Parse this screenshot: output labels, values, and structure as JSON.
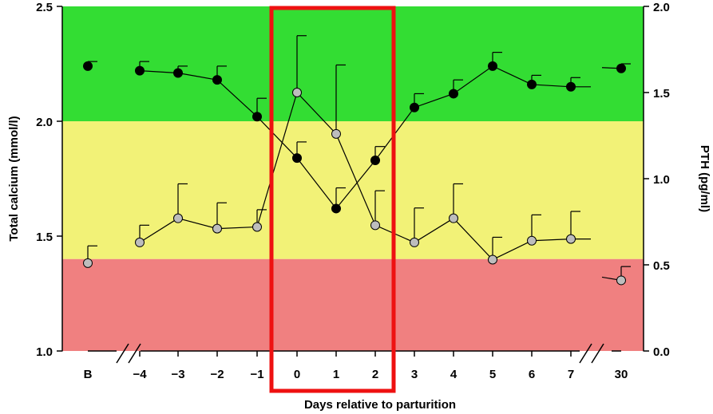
{
  "chart_data": {
    "type": "line",
    "xlabel": "Days relative to parturition",
    "ylabel_left": "Total calcium (mmol/l)",
    "ylabel_right": "PTH (pg/ml)",
    "categories": [
      "B",
      "−4",
      "−3",
      "−2",
      "−1",
      "0",
      "1",
      "2",
      "3",
      "4",
      "5",
      "6",
      "7",
      "30"
    ],
    "ylim_left": [
      1.0,
      2.5
    ],
    "ylim_right": [
      0.0,
      2.0
    ],
    "yticks_left": [
      "1.0",
      "1.5",
      "2.0",
      "2.5"
    ],
    "yticks_right": [
      "0.0",
      "0.5",
      "1.0",
      "1.5",
      "2.0"
    ],
    "bands": [
      {
        "name": "green",
        "from": 2.0,
        "to": 2.5,
        "color": "#33dd33"
      },
      {
        "name": "yellow",
        "from": 1.4,
        "to": 2.0,
        "color": "#f2f277"
      },
      {
        "name": "red",
        "from": 1.0,
        "to": 1.4,
        "color": "#f08080"
      }
    ],
    "highlight": {
      "from_category": "0",
      "to_category": "2",
      "color": "#ee1111"
    },
    "series": [
      {
        "axis": "left",
        "marker_color": "#000000",
        "values": [
          2.24,
          2.22,
          2.21,
          2.18,
          2.02,
          1.84,
          1.62,
          1.83,
          2.06,
          2.12,
          2.24,
          2.16,
          2.15,
          2.23
        ],
        "errors": [
          0.02,
          0.04,
          0.03,
          0.06,
          0.08,
          0.07,
          0.09,
          0.06,
          0.06,
          0.06,
          0.06,
          0.04,
          0.04,
          0.02
        ]
      },
      {
        "axis": "right",
        "marker_color": "#bdbdbd",
        "values": [
          0.51,
          0.63,
          0.77,
          0.71,
          0.72,
          1.5,
          1.26,
          0.73,
          0.63,
          0.77,
          0.53,
          0.64,
          0.65,
          0.41
        ],
        "errors": [
          0.1,
          0.1,
          0.2,
          0.15,
          0.1,
          0.33,
          0.4,
          0.2,
          0.2,
          0.2,
          0.13,
          0.15,
          0.16,
          0.08
        ]
      }
    ]
  }
}
